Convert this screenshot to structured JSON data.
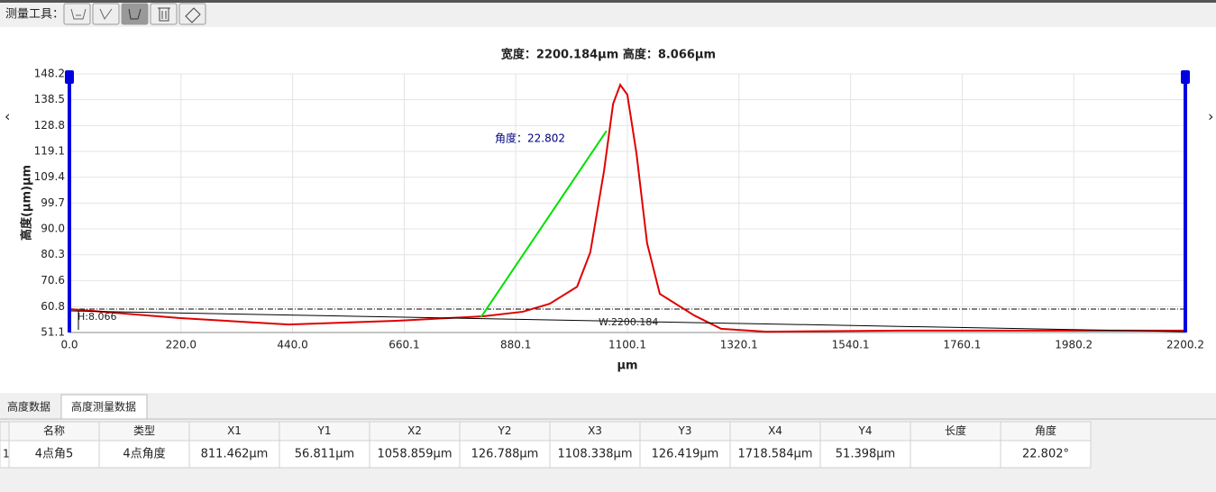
{
  "toolbar": {
    "label": "测量工具："
  },
  "chart_data": {
    "type": "line",
    "title": "宽度：2200.184μm 高度：8.066μm",
    "x_label": "μm",
    "y_label": "高度(μm)μm",
    "xlim": [
      0,
      2200.2
    ],
    "ylim": [
      51.1,
      148.2
    ],
    "xticks": [
      {
        "value": 0,
        "label": "0.0"
      },
      {
        "value": 220,
        "label": "220.0"
      },
      {
        "value": 440,
        "label": "440.0"
      },
      660.1,
      880.1,
      1100.1,
      1320.1,
      1540.1,
      1760.1,
      1980.2,
      2200.2
    ],
    "yticks": [
      51.1,
      60.8,
      70.6,
      80.3,
      {
        "value": 90,
        "label": "90.0"
      },
      99.7,
      109.4,
      119.1,
      128.8,
      138.5,
      148.2
    ],
    "grid": true,
    "series": [
      {
        "color": "#e00000",
        "x": [
          0,
          218.6,
          432,
          645,
          816,
          894,
          947,
          1001,
          1027,
          1054,
          1072,
          1086,
          1100,
          1118,
          1139,
          1164,
          1232,
          1285,
          1374,
          1640,
          2200
        ],
        "values": [
          59.9,
          56.5,
          54.1,
          55.5,
          57.2,
          58.9,
          61.9,
          68.3,
          81.2,
          111.7,
          137.0,
          144.1,
          140.4,
          118.4,
          84.6,
          65.6,
          57.5,
          52.5,
          51.4,
          51.8,
          51.8
        ]
      },
      {
        "color": "#00e000",
        "x": [
          811.462,
          1058.859,
          1108.338,
          1718.584
        ],
        "values": [
          56.811,
          126.788,
          null,
          51.398
        ]
      },
      {
        "color": "#000000",
        "x": [
          0,
          2200.2
        ],
        "values": [
          59.2,
          51.4
        ]
      }
    ],
    "reference_y": 59.9,
    "annotations": {
      "angle": "角度：22.802",
      "height": "H:8.066",
      "width": "W:2200.184"
    }
  },
  "tabs": [
    "高度数据",
    "高度测量数据"
  ],
  "table": {
    "headers": [
      "名称",
      "类型",
      "X1",
      "Y1",
      "X2",
      "Y2",
      "X3",
      "Y3",
      "X4",
      "Y4",
      "长度",
      "角度"
    ],
    "rows": [
      {
        "index": "1",
        "cells": [
          "4点角5",
          "4点角度",
          "811.462μm",
          "56.811μm",
          "1058.859μm",
          "126.788μm",
          "1108.338μm",
          "126.419μm",
          "1718.584μm",
          "51.398μm",
          null,
          "22.802°"
        ]
      }
    ]
  }
}
